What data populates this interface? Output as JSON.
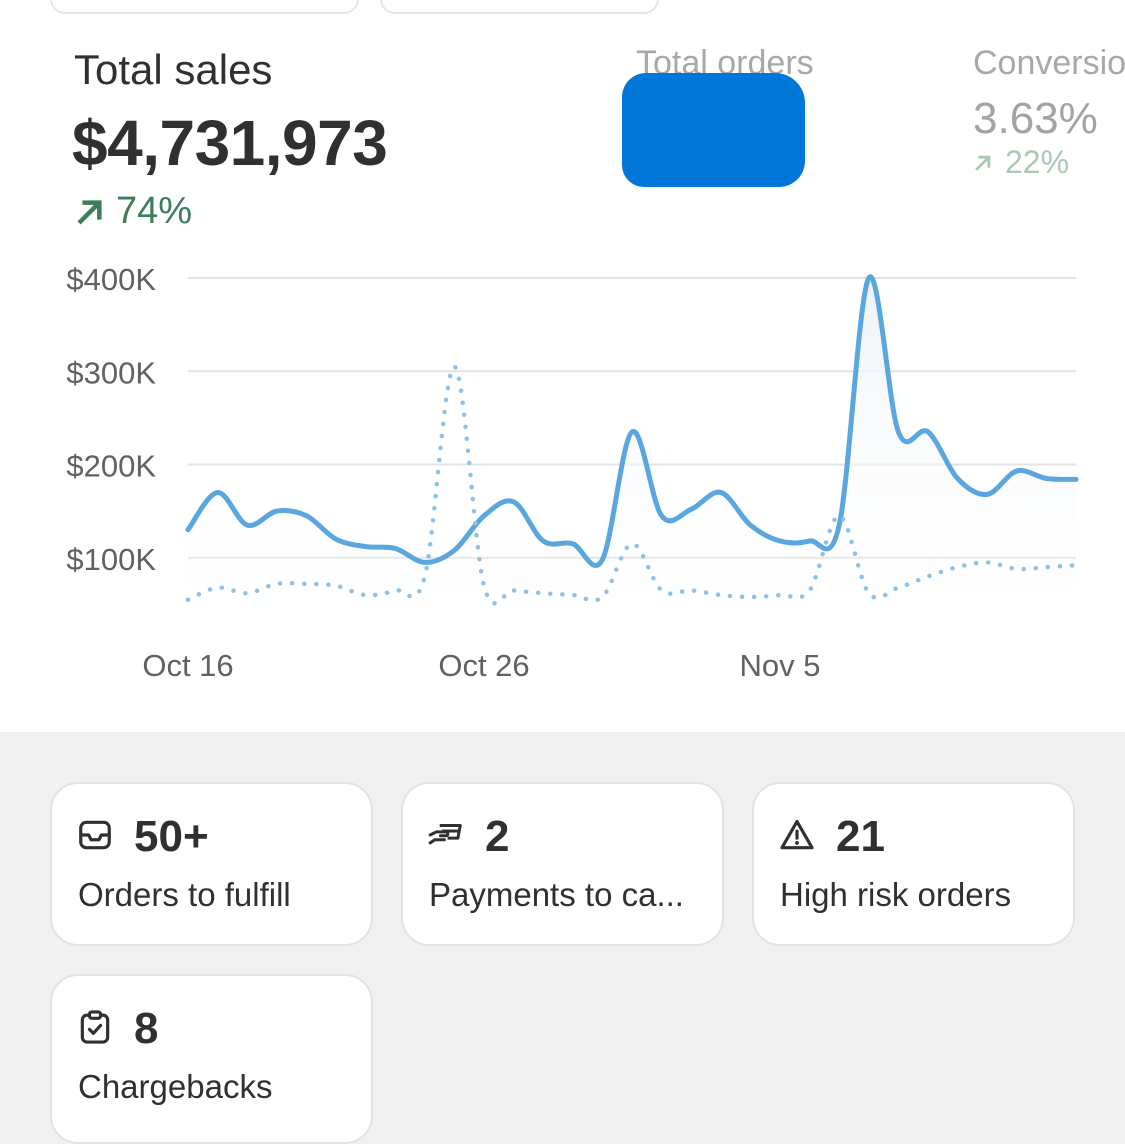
{
  "metrics": {
    "total_sales": {
      "label": "Total sales",
      "value": "$4,731,973",
      "change": "74%",
      "trend": "up"
    },
    "total_orders": {
      "label": "Total orders",
      "value_redacted": true
    },
    "conversion": {
      "label": "Conversion rate",
      "value": "3.63%",
      "change": "22%",
      "trend": "up"
    }
  },
  "chart_data": {
    "type": "line",
    "ylabel": "",
    "xlabel": "",
    "y_ticks": [
      "$400K",
      "$300K",
      "$200K",
      "$100K"
    ],
    "ylim": [
      0,
      400000
    ],
    "x_ticks": [
      "Oct 16",
      "Oct 26",
      "Nov 5"
    ],
    "grid": true,
    "x": [
      "Oct 16",
      "Oct 17",
      "Oct 18",
      "Oct 19",
      "Oct 20",
      "Oct 21",
      "Oct 22",
      "Oct 23",
      "Oct 24",
      "Oct 25",
      "Oct 26",
      "Oct 27",
      "Oct 28",
      "Oct 29",
      "Oct 30",
      "Oct 31",
      "Nov 1",
      "Nov 2",
      "Nov 3",
      "Nov 4",
      "Nov 5",
      "Nov 6",
      "Nov 7",
      "Nov 8",
      "Nov 9",
      "Nov 10",
      "Nov 11",
      "Nov 12",
      "Nov 13",
      "Nov 14",
      "Nov 15"
    ],
    "series": [
      {
        "style": "solid",
        "color": "#5aa6df",
        "values": [
          130000,
          170000,
          135000,
          150000,
          145000,
          120000,
          112000,
          110000,
          95000,
          108000,
          145000,
          160000,
          118000,
          115000,
          98000,
          235000,
          145000,
          152000,
          170000,
          135000,
          118000,
          118000,
          135000,
          400000,
          235000,
          235000,
          185000,
          168000,
          193000,
          185000,
          184000
        ]
      },
      {
        "style": "dotted",
        "color": "#8dc2e8",
        "values": [
          55000,
          68000,
          62000,
          72000,
          72000,
          70000,
          60000,
          65000,
          80000,
          305000,
          70000,
          65000,
          62000,
          60000,
          58000,
          115000,
          65000,
          65000,
          60000,
          58000,
          60000,
          65000,
          145000,
          62000,
          68000,
          80000,
          90000,
          95000,
          88000,
          90000,
          92000
        ]
      }
    ]
  },
  "cards": [
    {
      "icon": "inbox-icon",
      "value": "50+",
      "label": "Orders to fulfill"
    },
    {
      "icon": "payment-hand-icon",
      "value": "2",
      "label": "Payments to ca..."
    },
    {
      "icon": "warning-icon",
      "value": "21",
      "label": "High risk orders"
    },
    {
      "icon": "clipboard-check-icon",
      "value": "8",
      "label": "Chargebacks"
    }
  ],
  "colors": {
    "positive_trend": "#3d7d5b",
    "positive_trend_muted": "#a9c9b4",
    "chart_primary": "#5aa6df",
    "chart_comparison": "#8dc2e8",
    "redaction": "#0077d8"
  }
}
